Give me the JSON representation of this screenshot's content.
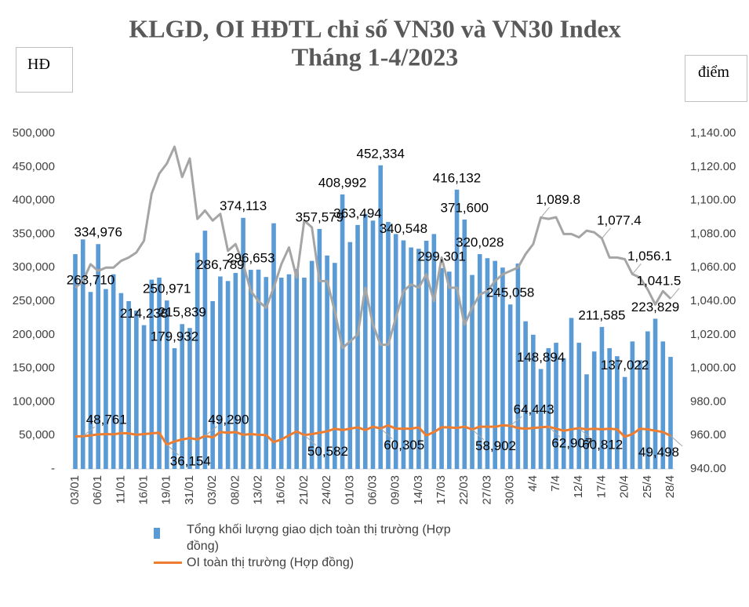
{
  "chart_data": {
    "type": "bar-line",
    "title": "KLGD, OI HĐTL chỉ số VN30 và VN30 Index",
    "subtitle": "Tháng 1-4/2023",
    "y_label": "HĐ",
    "y2_label": "điểm",
    "categories": [
      "03/01",
      null,
      null,
      "06/01",
      null,
      null,
      "11/01",
      null,
      null,
      "16/01",
      null,
      null,
      "19/01",
      null,
      null,
      "31/01",
      null,
      null,
      "03/02",
      null,
      null,
      "08/02",
      null,
      null,
      "13/02",
      null,
      null,
      "16/02",
      null,
      null,
      "21/02",
      null,
      null,
      "24/02",
      null,
      null,
      "01/03",
      null,
      null,
      "06/03",
      null,
      null,
      "09/03",
      null,
      null,
      "14/03",
      null,
      null,
      "17/03",
      null,
      null,
      "22/03",
      null,
      null,
      "27/03",
      null,
      null,
      "30/03",
      null,
      null,
      "4/4",
      null,
      null,
      "7/4",
      null,
      null,
      "12/4",
      null,
      null,
      "17/4",
      null,
      null,
      "20/4",
      null,
      null,
      "25/4",
      null,
      null,
      "28/4"
    ],
    "ylim": [
      0,
      500000
    ],
    "yticks": [
      {
        "value": 0,
        "label": "-"
      },
      {
        "value": 50000,
        "label": "50,000"
      },
      {
        "value": 100000,
        "label": "100,000"
      },
      {
        "value": 150000,
        "label": "150,000"
      },
      {
        "value": 200000,
        "label": "200,000"
      },
      {
        "value": 250000,
        "label": "250,000"
      },
      {
        "value": 300000,
        "label": "300,000"
      },
      {
        "value": 350000,
        "label": "350,000"
      },
      {
        "value": 400000,
        "label": "400,000"
      },
      {
        "value": 450000,
        "label": "450,000"
      },
      {
        "value": 500000,
        "label": "500,000"
      }
    ],
    "y2lim": [
      940,
      1140
    ],
    "y2ticks": [
      {
        "value": 940,
        "label": "940.00"
      },
      {
        "value": 960,
        "label": "960.00"
      },
      {
        "value": 980,
        "label": "980.00"
      },
      {
        "value": 1000,
        "label": "1,000.00"
      },
      {
        "value": 1020,
        "label": "1,020.00"
      },
      {
        "value": 1040,
        "label": "1,040.00"
      },
      {
        "value": 1060,
        "label": "1,060.00"
      },
      {
        "value": 1080,
        "label": "1,080.00"
      },
      {
        "value": 1100,
        "label": "1,100.00"
      },
      {
        "value": 1120,
        "label": "1,120.00"
      },
      {
        "value": 1140,
        "label": "1,140.00"
      }
    ],
    "series": [
      {
        "name": "Tổng khối lượng giao dịch toàn thị trường (Hợp đồng)",
        "type": "bar",
        "color": "#5b9bd5",
        "values": [
          320000,
          342000,
          263710,
          334976,
          268000,
          290000,
          262000,
          250000,
          236000,
          214238,
          282000,
          285000,
          250971,
          179932,
          215839,
          210000,
          322000,
          355000,
          250000,
          286789,
          280000,
          292000,
          374113,
          296653,
          297000,
          286000,
          366000,
          285000,
          290000,
          298000,
          285000,
          310000,
          357579,
          318000,
          307000,
          408992,
          338000,
          363494,
          380000,
          370000,
          452334,
          368000,
          350000,
          340548,
          330000,
          328000,
          340000,
          350000,
          299301,
          294000,
          416132,
          371600,
          289000,
          320028,
          314000,
          310000,
          300000,
          245058,
          306000,
          220000,
          200000,
          148894,
          180000,
          188000,
          165000,
          225000,
          188000,
          141000,
          175000,
          211585,
          180000,
          168000,
          137022,
          190000,
          162000,
          205000,
          223829,
          190000,
          167000
        ],
        "value_labels": [
          null,
          null,
          "263,710",
          "334,976",
          null,
          null,
          null,
          null,
          null,
          "214,238",
          null,
          null,
          "250,971",
          "179,932",
          "215,839",
          null,
          null,
          null,
          null,
          "286,789",
          null,
          null,
          "374,113",
          "296,653",
          null,
          null,
          null,
          null,
          null,
          null,
          null,
          null,
          "357,579",
          null,
          null,
          "408,992",
          null,
          "363,494",
          null,
          null,
          "452,334",
          null,
          null,
          "340,548",
          null,
          null,
          null,
          null,
          "299,301",
          null,
          "416,132",
          "371,600",
          null,
          "320,028",
          null,
          null,
          null,
          "245,058",
          null,
          null,
          null,
          "148,894",
          null,
          null,
          null,
          null,
          null,
          null,
          null,
          "211,585",
          null,
          null,
          "137,022",
          null,
          null,
          null,
          "223,829",
          null,
          null
        ]
      },
      {
        "name": "OI toàn thị trường (Hợp đồng)",
        "type": "line",
        "color": "#ed7d31",
        "values": [
          48500,
          48761,
          50000,
          51500,
          52000,
          51500,
          53500,
          53000,
          51000,
          52000,
          53000,
          54000,
          36154,
          41000,
          44000,
          46000,
          44000,
          49290,
          47000,
          55000,
          54000,
          55000,
          51000,
          52000,
          51000,
          50500,
          40000,
          44000,
          50000,
          56000,
          50582,
          52000,
          54000,
          56000,
          60000,
          58000,
          60000,
          62000,
          58000,
          63000,
          60305,
          65000,
          60000,
          60000,
          60000,
          62000,
          50000,
          55000,
          62000,
          62000,
          61000,
          63000,
          58902,
          63000,
          63000,
          63000,
          65000,
          64443,
          61000,
          60000,
          61000,
          62000,
          62907,
          60000,
          57000,
          59000,
          60812,
          59000,
          60000,
          59000,
          60000,
          59000,
          48000,
          52000,
          60000,
          59000,
          57000,
          55000,
          49498
        ],
        "value_labels": [
          null,
          "48,761",
          null,
          null,
          null,
          null,
          null,
          null,
          null,
          null,
          null,
          null,
          "36,154",
          null,
          null,
          null,
          null,
          "49,290",
          null,
          null,
          null,
          null,
          null,
          null,
          null,
          null,
          null,
          null,
          null,
          null,
          "50,582",
          null,
          null,
          null,
          null,
          null,
          null,
          null,
          null,
          null,
          "60,305",
          null,
          null,
          null,
          null,
          null,
          null,
          null,
          null,
          null,
          null,
          null,
          "58,902",
          null,
          null,
          null,
          null,
          "64,443",
          null,
          null,
          null,
          null,
          "62,907",
          null,
          null,
          null,
          "60,812",
          null,
          null,
          null,
          null,
          null,
          null,
          null,
          null,
          null,
          null,
          null,
          "49,498"
        ]
      },
      {
        "type": "line",
        "axis": "y2",
        "color": "#a5a5a5",
        "values": [
          1048,
          1052,
          1062,
          1058,
          1060,
          1060,
          1064,
          1066,
          1069,
          1076,
          1104,
          1116,
          1122,
          1132,
          1114,
          1125,
          1089,
          1094,
          1088,
          1092,
          1070,
          1074,
          1062,
          1046,
          1040,
          1036,
          1048,
          1062,
          1072,
          1054,
          1088,
          1084,
          1052,
          1052,
          1034,
          1012,
          1016,
          1020,
          1048,
          1026,
          1014,
          1014,
          1030,
          1046,
          1050,
          1048,
          1056,
          1040,
          1066,
          1048,
          1048,
          1026,
          1036,
          1044,
          1046,
          1052,
          1056,
          1058,
          1060,
          1068,
          1074,
          1089.8,
          1089,
          1090,
          1080,
          1080,
          1078,
          1082,
          1081,
          1077.4,
          1066,
          1066,
          1065,
          1056.1,
          1054,
          1047,
          1038,
          1046,
          1041.5
        ],
        "value_labels": [
          null,
          null,
          null,
          null,
          null,
          null,
          null,
          null,
          null,
          null,
          null,
          null,
          null,
          null,
          null,
          null,
          null,
          null,
          null,
          null,
          null,
          null,
          null,
          null,
          null,
          null,
          null,
          null,
          null,
          null,
          null,
          null,
          null,
          null,
          null,
          null,
          null,
          null,
          null,
          null,
          null,
          null,
          null,
          null,
          null,
          null,
          null,
          null,
          null,
          null,
          null,
          null,
          null,
          null,
          null,
          null,
          null,
          null,
          null,
          null,
          null,
          "1,089.8",
          null,
          null,
          null,
          null,
          null,
          null,
          null,
          "1,077.4",
          null,
          null,
          null,
          "1,056.1",
          null,
          null,
          null,
          null,
          "1,041.5"
        ]
      }
    ]
  }
}
